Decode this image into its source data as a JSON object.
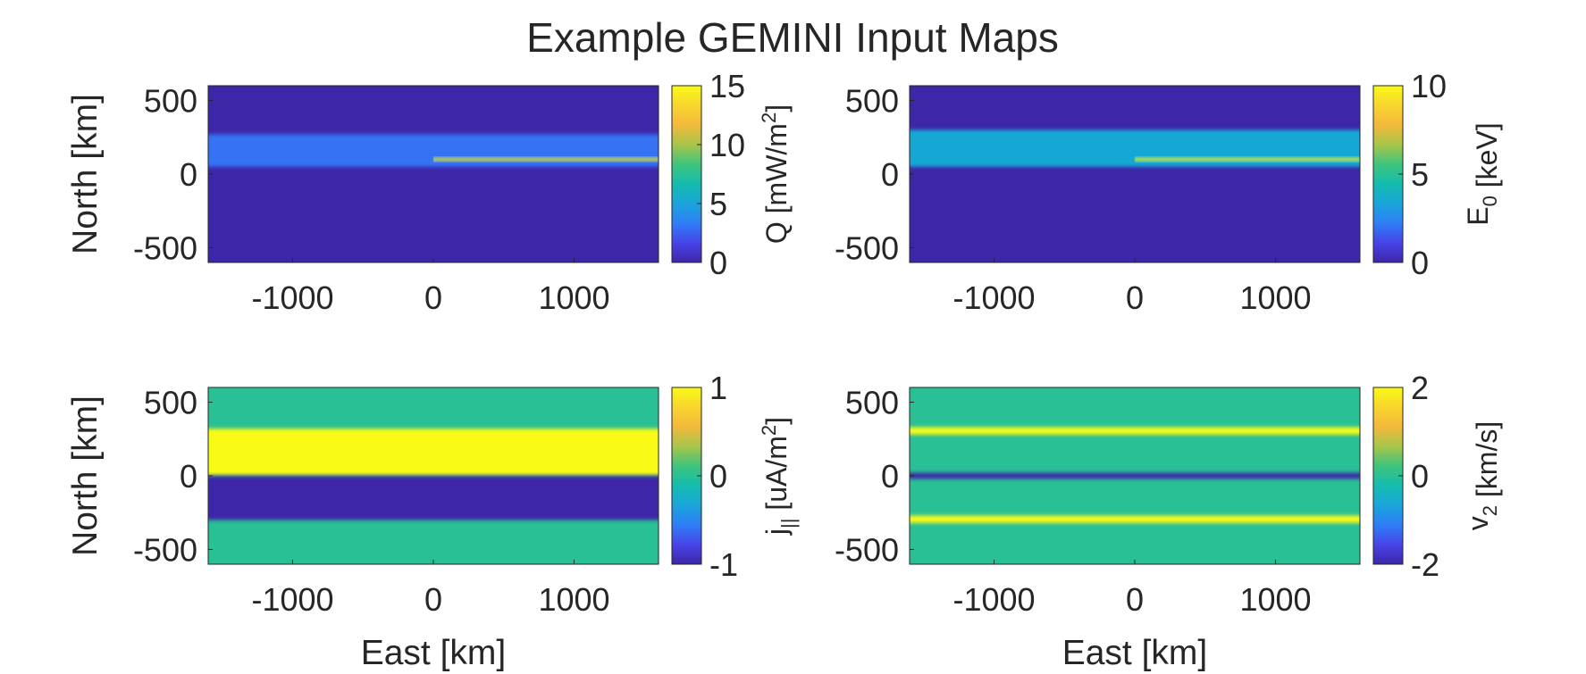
{
  "figure_title": "Example GEMINI Input Maps",
  "colormap": [
    "#3e26a8",
    "#4744e8",
    "#2f7ef7",
    "#1aa5db",
    "#14bcae",
    "#3ec47d",
    "#a8c54a",
    "#f3b93b",
    "#f9d52e",
    "#f9fb15"
  ],
  "chart_data": [
    {
      "type": "heatmap",
      "panel": "top-left",
      "title": "",
      "xlabel": "",
      "ylabel": "North [km]",
      "xlim": [
        -1600,
        1600
      ],
      "ylim": [
        -600,
        600
      ],
      "xticks": [
        -1000,
        0,
        1000
      ],
      "yticks": [
        500,
        0,
        -500
      ],
      "colorbar": {
        "label_main": "Q [mW/m",
        "label_sup": "2",
        "label_end": "]",
        "label_sub": "",
        "label_sub_end": "",
        "clim": [
          0,
          15
        ],
        "ticks": [
          0,
          5,
          10,
          15
        ]
      },
      "background": 0,
      "bands": [
        {
          "y_from": 50,
          "y_to": 270,
          "x_from": -1600,
          "x_to": 1600,
          "value": 3
        },
        {
          "y_from": 90,
          "y_to": 110,
          "x_from": 0,
          "x_to": 1600,
          "value": 15
        }
      ]
    },
    {
      "type": "heatmap",
      "panel": "top-right",
      "title": "",
      "xlabel": "",
      "ylabel": "",
      "xlim": [
        -1600,
        1600
      ],
      "ylim": [
        -600,
        600
      ],
      "xticks": [
        -1000,
        0,
        1000
      ],
      "yticks": [
        500,
        0,
        -500
      ],
      "colorbar": {
        "label_main": "E",
        "label_sup": "",
        "label_end": " [keV]",
        "label_sub": "0",
        "label_sub_end": "",
        "clim": [
          0,
          10
        ],
        "ticks": [
          0,
          5,
          10
        ]
      },
      "background": 0,
      "bands": [
        {
          "y_from": 50,
          "y_to": 300,
          "x_from": -1600,
          "x_to": 1600,
          "value": 3.5
        },
        {
          "y_from": 90,
          "y_to": 110,
          "x_from": 0,
          "x_to": 1600,
          "value": 10
        }
      ]
    },
    {
      "type": "heatmap",
      "panel": "bottom-left",
      "title": "",
      "xlabel": "East [km]",
      "ylabel": "North [km]",
      "xlim": [
        -1600,
        1600
      ],
      "ylim": [
        -600,
        600
      ],
      "xticks": [
        -1000,
        0,
        1000
      ],
      "yticks": [
        500,
        0,
        -500
      ],
      "colorbar": {
        "label_main": "j",
        "label_sup": "2",
        "label_end": "]",
        "label_sub": "||",
        "label_sub_end": " [uA/m",
        "clim": [
          -1,
          1
        ],
        "ticks": [
          -1,
          0,
          1
        ]
      },
      "background": 0,
      "bands": [
        {
          "y_from": 0,
          "y_to": 320,
          "x_from": -1600,
          "x_to": 1600,
          "value": 1
        },
        {
          "y_from": -300,
          "y_to": 0,
          "x_from": -1600,
          "x_to": 1600,
          "value": -1
        }
      ]
    },
    {
      "type": "heatmap",
      "panel": "bottom-right",
      "title": "",
      "xlabel": "East [km]",
      "ylabel": "",
      "xlim": [
        -1600,
        1600
      ],
      "ylim": [
        -600,
        600
      ],
      "xticks": [
        -1000,
        0,
        1000
      ],
      "yticks": [
        500,
        0,
        -500
      ],
      "colorbar": {
        "label_main": "v",
        "label_sup": "",
        "label_end": " [km/s]",
        "label_sub": "2",
        "label_sub_end": "",
        "clim": [
          -2,
          2
        ],
        "ticks": [
          -2,
          0,
          2
        ]
      },
      "background": 0,
      "bands": [
        {
          "y_from": 280,
          "y_to": 330,
          "x_from": -1600,
          "x_to": 1600,
          "value": 2
        },
        {
          "y_from": -20,
          "y_to": 20,
          "x_from": -1600,
          "x_to": 1600,
          "value": -2
        },
        {
          "y_from": -320,
          "y_to": -270,
          "x_from": -1600,
          "x_to": 1600,
          "value": 2
        }
      ]
    }
  ]
}
